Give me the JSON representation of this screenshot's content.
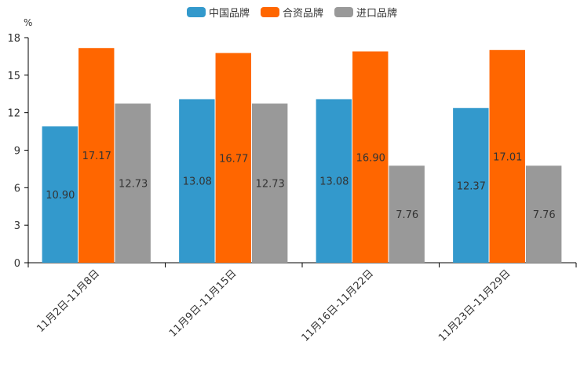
{
  "chart_data": {
    "type": "bar",
    "unit": "%",
    "categories": [
      "11月2日-11月8日",
      "11月9日-11月15日",
      "11月16日-11月22日",
      "11月23日-11月29日"
    ],
    "series": [
      {
        "name": "中国品牌",
        "color": "#3399cc",
        "values": [
          10.9,
          13.08,
          13.08,
          12.37
        ],
        "labels": [
          "10.90",
          "13.08",
          "13.08",
          "12.37"
        ]
      },
      {
        "name": "合资品牌",
        "color": "#ff6600",
        "values": [
          17.17,
          16.77,
          16.9,
          17.01
        ],
        "labels": [
          "17.17",
          "16.77",
          "16.90",
          "17.01"
        ]
      },
      {
        "name": "进口品牌",
        "color": "#999999",
        "values": [
          12.73,
          12.73,
          7.76,
          7.76
        ],
        "labels": [
          "12.73",
          "12.73",
          "7.76",
          "7.76"
        ]
      }
    ],
    "yticks": [
      "0",
      "3",
      "6",
      "9",
      "12",
      "15",
      "18"
    ],
    "ylim": [
      0,
      18
    ],
    "legend_position": "top-center"
  }
}
